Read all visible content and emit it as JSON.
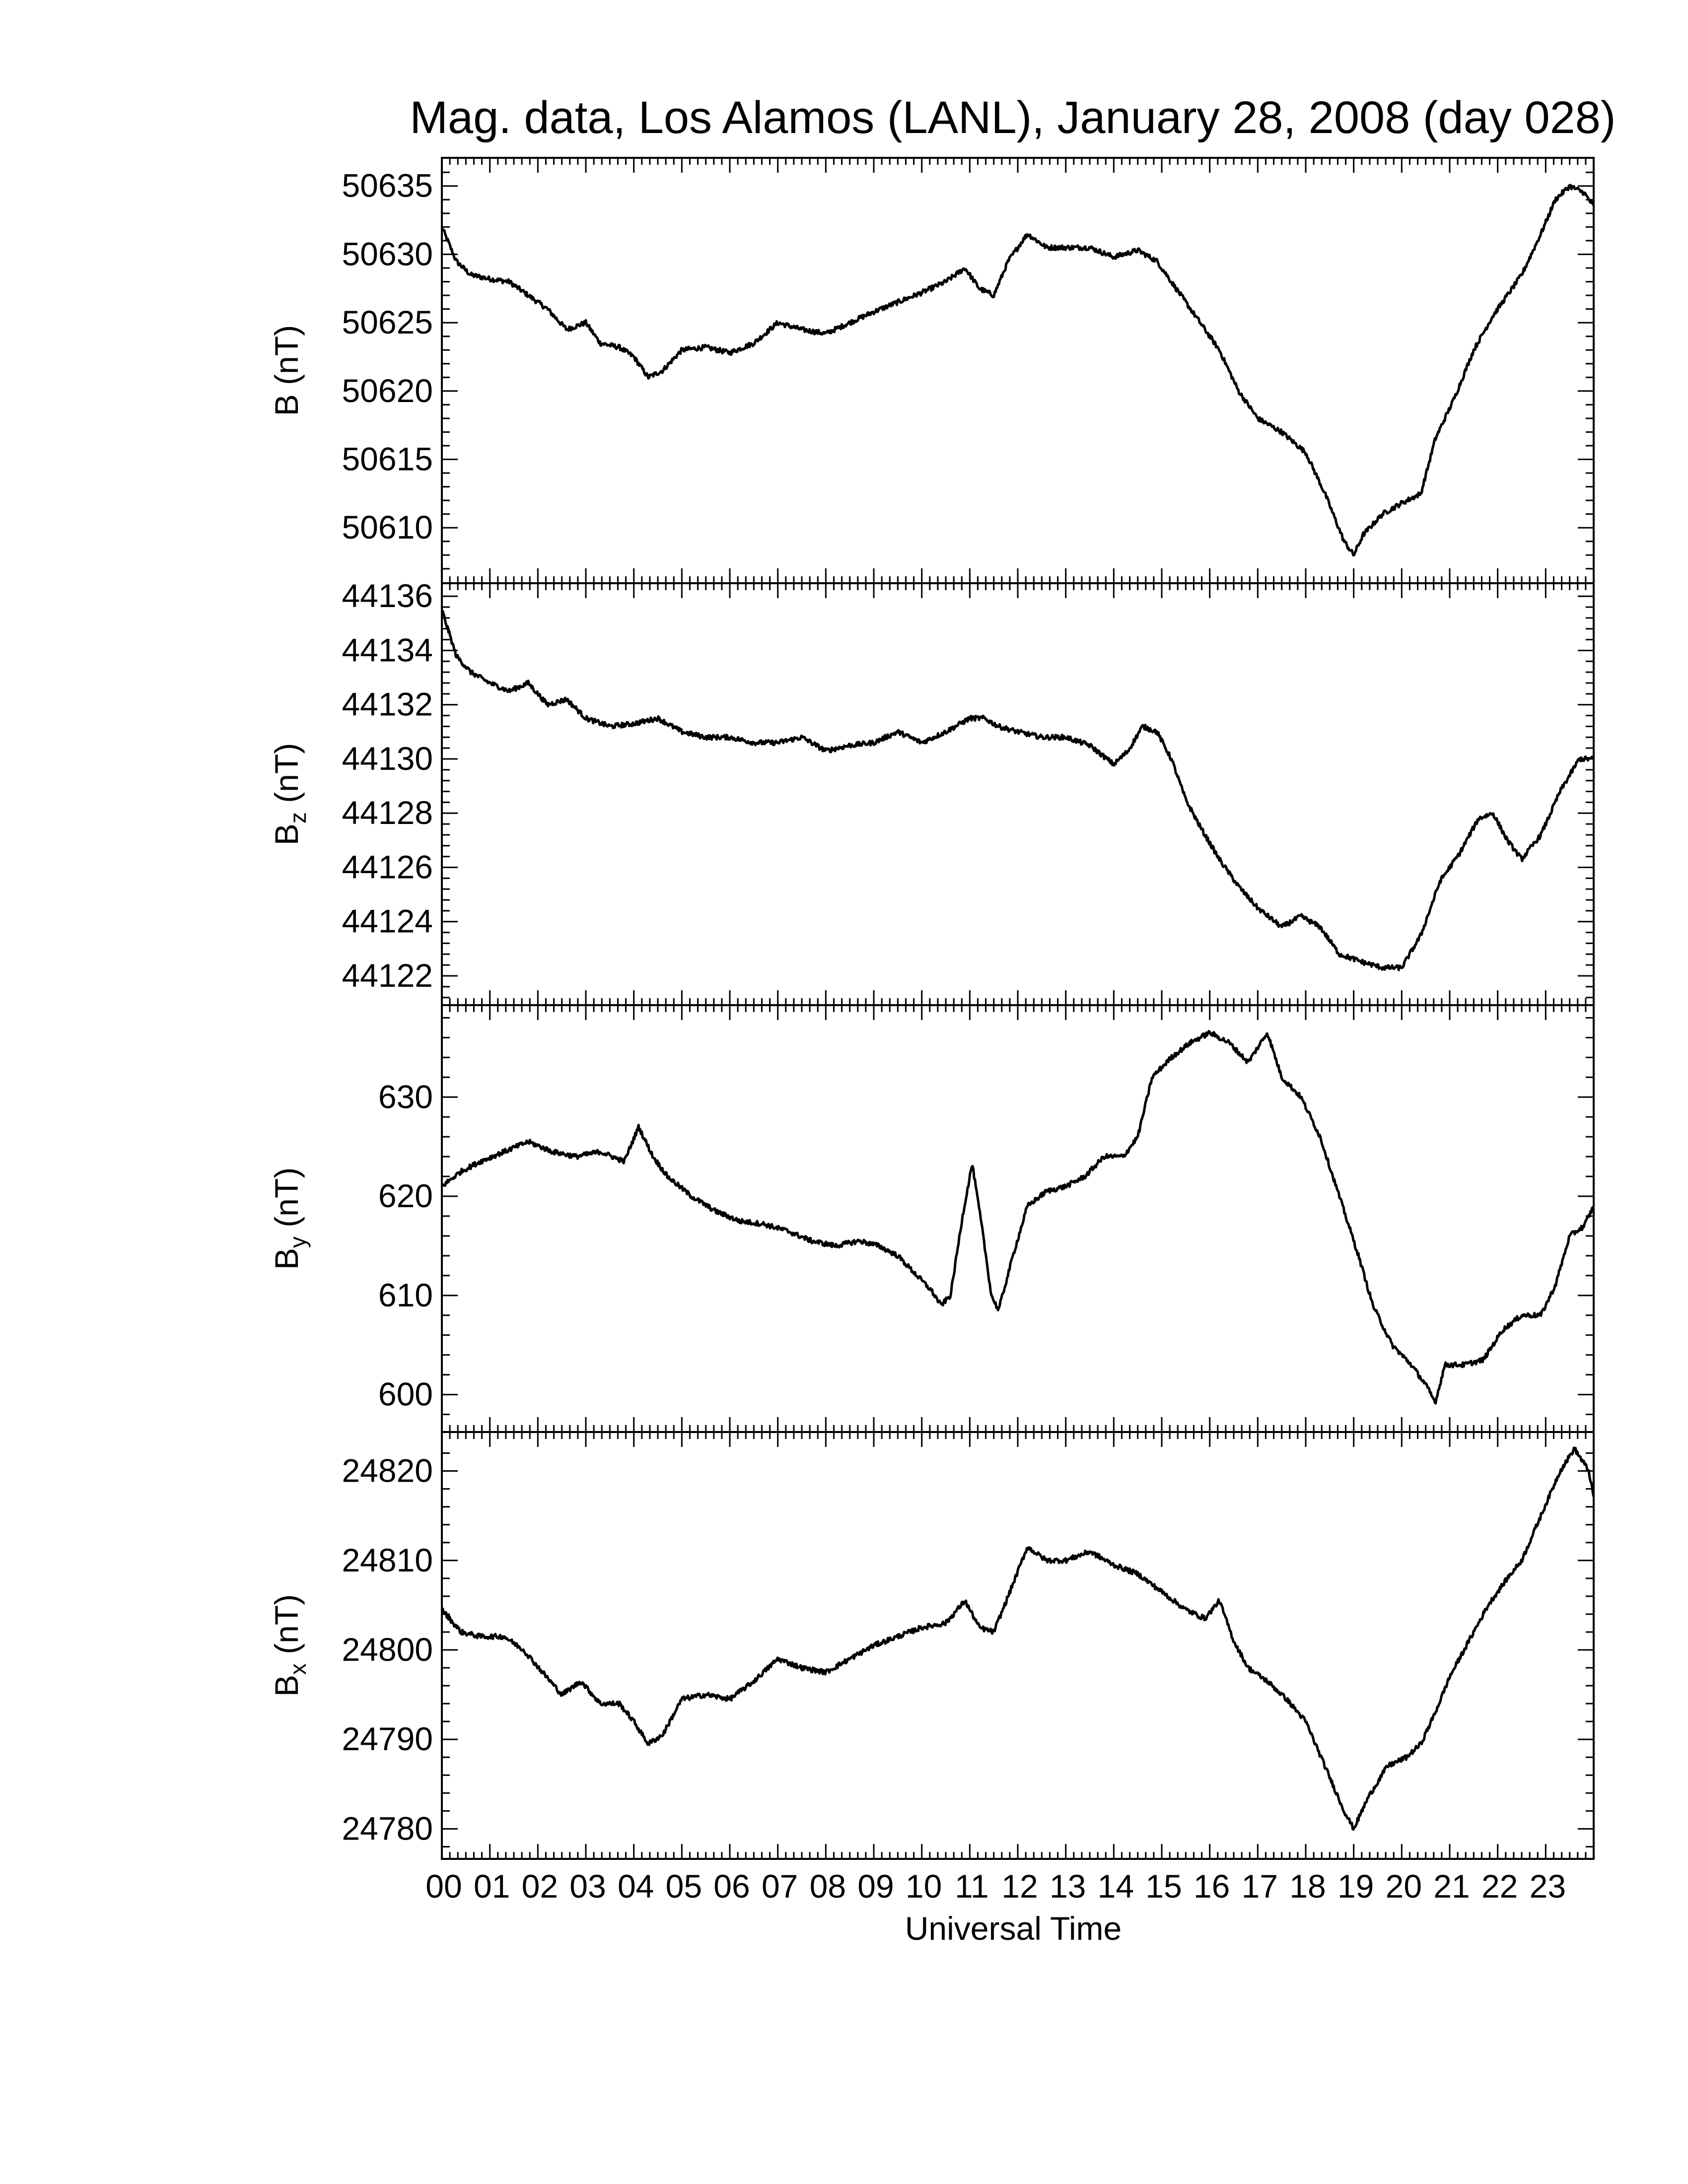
{
  "chart_data": {
    "type": "line",
    "title": "Mag. data, Los Alamos (LANL), January 28, 2008 (day 028)",
    "xlabel": "Universal Time",
    "x_tick_labels": [
      "00",
      "01",
      "02",
      "03",
      "04",
      "05",
      "06",
      "07",
      "08",
      "09",
      "10",
      "11",
      "12",
      "13",
      "14",
      "15",
      "16",
      "17",
      "18",
      "19",
      "20",
      "21",
      "22",
      "23"
    ],
    "xlim": [
      0,
      24
    ],
    "x_unit": "hours UT",
    "grid": false,
    "panels": [
      {
        "label_main": "B",
        "label_sub": "",
        "label_unit": " (nT)",
        "ylim": [
          50606.5,
          50636.5
        ],
        "y_ticks": [
          50610,
          50615,
          50620,
          50625,
          50630,
          50635
        ],
        "y_tick_labels": [
          "50610",
          "50615",
          "50620",
          "50625",
          "50630",
          "50635"
        ],
        "color": "#000000",
        "points": [
          [
            0,
            50632
          ],
          [
            0.3,
            50629.5
          ],
          [
            0.6,
            50628.5
          ],
          [
            1,
            50628.2
          ],
          [
            1.4,
            50628
          ],
          [
            1.8,
            50627
          ],
          [
            2.2,
            50626
          ],
          [
            2.6,
            50624.5
          ],
          [
            3,
            50625
          ],
          [
            3.3,
            50623.5
          ],
          [
            3.7,
            50623.2
          ],
          [
            4,
            50622.5
          ],
          [
            4.3,
            50621
          ],
          [
            4.6,
            50621.5
          ],
          [
            5,
            50623
          ],
          [
            5.5,
            50623.2
          ],
          [
            6,
            50622.8
          ],
          [
            6.5,
            50623.5
          ],
          [
            7,
            50625
          ],
          [
            7.5,
            50624.5
          ],
          [
            8,
            50624.2
          ],
          [
            8.5,
            50625
          ],
          [
            9,
            50625.8
          ],
          [
            9.5,
            50626.5
          ],
          [
            10,
            50627.2
          ],
          [
            10.5,
            50628
          ],
          [
            10.9,
            50629
          ],
          [
            11.2,
            50627.5
          ],
          [
            11.5,
            50627
          ],
          [
            11.8,
            50629.5
          ],
          [
            12.2,
            50631.5
          ],
          [
            12.6,
            50630.5
          ],
          [
            13,
            50630.5
          ],
          [
            13.5,
            50630.5
          ],
          [
            14,
            50629.8
          ],
          [
            14.5,
            50630.3
          ],
          [
            14.9,
            50629.5
          ],
          [
            15.3,
            50627.5
          ],
          [
            15.8,
            50625
          ],
          [
            16.2,
            50623
          ],
          [
            16.6,
            50620
          ],
          [
            17,
            50618
          ],
          [
            17.5,
            50617
          ],
          [
            18,
            50615.5
          ],
          [
            18.4,
            50612.5
          ],
          [
            18.8,
            50609
          ],
          [
            19,
            50608
          ],
          [
            19.2,
            50609.5
          ],
          [
            19.6,
            50611
          ],
          [
            20,
            50611.8
          ],
          [
            20.4,
            50612.5
          ],
          [
            20.7,
            50616.5
          ],
          [
            21.1,
            50619.5
          ],
          [
            21.5,
            50623
          ],
          [
            21.9,
            50625.5
          ],
          [
            22.2,
            50627
          ],
          [
            22.5,
            50628.5
          ],
          [
            22.9,
            50631.5
          ],
          [
            23.2,
            50634
          ],
          [
            23.5,
            50635
          ],
          [
            23.8,
            50634.5
          ],
          [
            24,
            50633.5
          ]
        ]
      },
      {
        "label_main": "B",
        "label_sub": "z",
        "label_unit": " (nT)",
        "ylim": [
          44121.2,
          44136.2
        ],
        "y_ticks": [
          44122,
          44124,
          44126,
          44128,
          44130,
          44132,
          44134,
          44136
        ],
        "y_tick_labels": [
          "44122",
          "44124",
          "44126",
          "44128",
          "44130",
          "44132",
          "44134",
          "44136"
        ],
        "color": "#000000",
        "points": [
          [
            0,
            44135.5
          ],
          [
            0.3,
            44133.8
          ],
          [
            0.6,
            44133.2
          ],
          [
            1,
            44132.8
          ],
          [
            1.4,
            44132.5
          ],
          [
            1.8,
            44132.8
          ],
          [
            2.2,
            44132
          ],
          [
            2.6,
            44132.2
          ],
          [
            3,
            44131.5
          ],
          [
            3.5,
            44131.2
          ],
          [
            4,
            44131.3
          ],
          [
            4.5,
            44131.5
          ],
          [
            5,
            44131
          ],
          [
            5.5,
            44130.8
          ],
          [
            6,
            44130.8
          ],
          [
            6.5,
            44130.6
          ],
          [
            7,
            44130.6
          ],
          [
            7.5,
            44130.8
          ],
          [
            8,
            44130.3
          ],
          [
            8.5,
            44130.5
          ],
          [
            9,
            44130.6
          ],
          [
            9.5,
            44131
          ],
          [
            10,
            44130.6
          ],
          [
            10.5,
            44131
          ],
          [
            11,
            44131.5
          ],
          [
            11.3,
            44131.5
          ],
          [
            11.6,
            44131.2
          ],
          [
            12,
            44131
          ],
          [
            12.5,
            44130.8
          ],
          [
            13,
            44130.8
          ],
          [
            13.5,
            44130.5
          ],
          [
            14,
            44129.8
          ],
          [
            14.3,
            44130.3
          ],
          [
            14.6,
            44131.2
          ],
          [
            14.9,
            44131
          ],
          [
            15.2,
            44130
          ],
          [
            15.5,
            44128.5
          ],
          [
            15.8,
            44127.5
          ],
          [
            16.2,
            44126.3
          ],
          [
            16.6,
            44125.3
          ],
          [
            17,
            44124.5
          ],
          [
            17.5,
            44123.8
          ],
          [
            17.9,
            44124.2
          ],
          [
            18.3,
            44123.8
          ],
          [
            18.7,
            44122.8
          ],
          [
            19.2,
            44122.5
          ],
          [
            19.6,
            44122.3
          ],
          [
            20,
            44122.3
          ],
          [
            20.4,
            44123.5
          ],
          [
            20.8,
            44125.5
          ],
          [
            21.2,
            44126.5
          ],
          [
            21.6,
            44127.8
          ],
          [
            21.9,
            44128
          ],
          [
            22.2,
            44127
          ],
          [
            22.5,
            44126.3
          ],
          [
            22.9,
            44127.2
          ],
          [
            23.3,
            44128.8
          ],
          [
            23.7,
            44130
          ],
          [
            24,
            44130
          ]
        ]
      },
      {
        "label_main": "B",
        "label_sub": "y",
        "label_unit": " (nT)",
        "ylim": [
          597,
          638.5
        ],
        "y_ticks": [
          600,
          610,
          620,
          630
        ],
        "y_tick_labels": [
          "600",
          "610",
          "620",
          "630"
        ],
        "color": "#000000",
        "points": [
          [
            0,
            621
          ],
          [
            0.4,
            622.5
          ],
          [
            0.8,
            623.5
          ],
          [
            1.3,
            624.5
          ],
          [
            1.8,
            625.5
          ],
          [
            2.3,
            624.5
          ],
          [
            2.8,
            624
          ],
          [
            3.3,
            624.5
          ],
          [
            3.8,
            623.5
          ],
          [
            4.1,
            627
          ],
          [
            4.4,
            624
          ],
          [
            4.7,
            622
          ],
          [
            5.2,
            620
          ],
          [
            5.7,
            618.5
          ],
          [
            6.2,
            617.5
          ],
          [
            6.7,
            617.2
          ],
          [
            7.2,
            616.5
          ],
          [
            7.7,
            615.5
          ],
          [
            8.2,
            615
          ],
          [
            8.7,
            615.5
          ],
          [
            9.1,
            615
          ],
          [
            9.5,
            614
          ],
          [
            9.9,
            612
          ],
          [
            10.2,
            610.5
          ],
          [
            10.4,
            609
          ],
          [
            10.6,
            610
          ],
          [
            10.85,
            618
          ],
          [
            11.05,
            623.3
          ],
          [
            11.25,
            617
          ],
          [
            11.45,
            610
          ],
          [
            11.6,
            608.5
          ],
          [
            11.9,
            614
          ],
          [
            12.2,
            619
          ],
          [
            12.6,
            620.5
          ],
          [
            13,
            621
          ],
          [
            13.4,
            622
          ],
          [
            13.8,
            624
          ],
          [
            14.2,
            624
          ],
          [
            14.5,
            626
          ],
          [
            14.8,
            632
          ],
          [
            15.2,
            634
          ],
          [
            15.6,
            635.5
          ],
          [
            16,
            636.5
          ],
          [
            16.4,
            635.5
          ],
          [
            16.8,
            633.5
          ],
          [
            17.2,
            636.5
          ],
          [
            17.5,
            632
          ],
          [
            17.9,
            630
          ],
          [
            18.3,
            626
          ],
          [
            18.7,
            620
          ],
          [
            19.1,
            614
          ],
          [
            19.4,
            609
          ],
          [
            19.8,
            605
          ],
          [
            20.2,
            603
          ],
          [
            20.5,
            601
          ],
          [
            20.7,
            599.2
          ],
          [
            20.9,
            603
          ],
          [
            21.3,
            603
          ],
          [
            21.7,
            603.5
          ],
          [
            22.1,
            606.5
          ],
          [
            22.5,
            608
          ],
          [
            22.9,
            608
          ],
          [
            23.2,
            611
          ],
          [
            23.5,
            616
          ],
          [
            23.8,
            617
          ],
          [
            24,
            619
          ]
        ]
      },
      {
        "label_main": "B",
        "label_sub": "x",
        "label_unit": " (nT)",
        "ylim": [
          24777.5,
          24823.5
        ],
        "y_ticks": [
          24780,
          24790,
          24800,
          24810,
          24820
        ],
        "y_tick_labels": [
          "24780",
          "24790",
          "24800",
          "24810",
          "24820"
        ],
        "color": "#000000",
        "points": [
          [
            0,
            24804.5
          ],
          [
            0.4,
            24802
          ],
          [
            0.8,
            24801.5
          ],
          [
            1.3,
            24801.5
          ],
          [
            1.7,
            24800
          ],
          [
            2.1,
            24797.5
          ],
          [
            2.5,
            24795
          ],
          [
            2.9,
            24796.5
          ],
          [
            3.3,
            24794
          ],
          [
            3.7,
            24794
          ],
          [
            4,
            24792
          ],
          [
            4.3,
            24789.5
          ],
          [
            4.6,
            24790.5
          ],
          [
            5,
            24794.5
          ],
          [
            5.5,
            24795
          ],
          [
            6,
            24794.5
          ],
          [
            6.5,
            24796.5
          ],
          [
            7,
            24799
          ],
          [
            7.5,
            24798
          ],
          [
            8,
            24797.5
          ],
          [
            8.5,
            24799
          ],
          [
            9,
            24800.5
          ],
          [
            9.5,
            24801.5
          ],
          [
            10,
            24802.5
          ],
          [
            10.5,
            24803
          ],
          [
            10.9,
            24805.5
          ],
          [
            11.2,
            24802.5
          ],
          [
            11.5,
            24802
          ],
          [
            11.8,
            24806
          ],
          [
            12.2,
            24811.5
          ],
          [
            12.6,
            24810
          ],
          [
            13,
            24810
          ],
          [
            13.5,
            24811
          ],
          [
            14,
            24809.5
          ],
          [
            14.5,
            24808.5
          ],
          [
            15,
            24806.5
          ],
          [
            15.5,
            24804.5
          ],
          [
            15.9,
            24803.5
          ],
          [
            16.2,
            24805.5
          ],
          [
            16.5,
            24801
          ],
          [
            16.8,
            24798
          ],
          [
            17.2,
            24796.5
          ],
          [
            17.6,
            24794.5
          ],
          [
            18,
            24792
          ],
          [
            18.4,
            24787
          ],
          [
            18.8,
            24782
          ],
          [
            19,
            24780
          ],
          [
            19.3,
            24783.5
          ],
          [
            19.7,
            24787
          ],
          [
            20.1,
            24788
          ],
          [
            20.4,
            24789.5
          ],
          [
            20.7,
            24793
          ],
          [
            21,
            24797
          ],
          [
            21.4,
            24801
          ],
          [
            21.8,
            24805
          ],
          [
            22.2,
            24808
          ],
          [
            22.5,
            24810
          ],
          [
            22.9,
            24815
          ],
          [
            23.3,
            24820
          ],
          [
            23.6,
            24822.5
          ],
          [
            23.9,
            24820
          ],
          [
            24,
            24817
          ]
        ]
      }
    ]
  }
}
